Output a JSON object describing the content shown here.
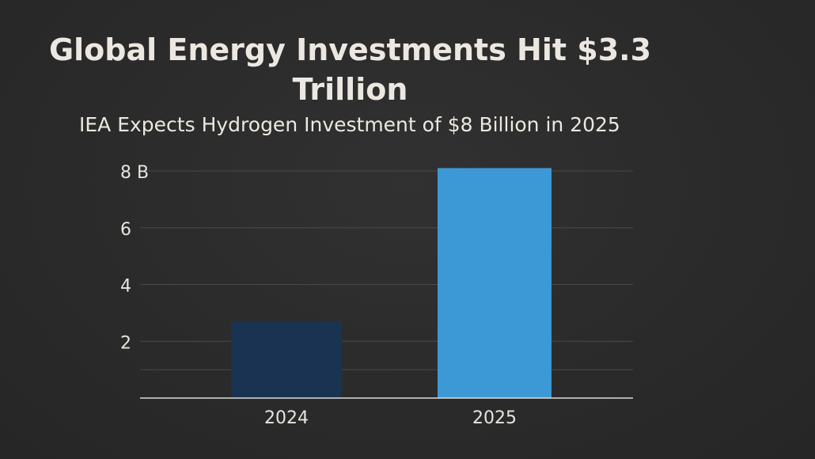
{
  "chart_data": {
    "type": "bar",
    "title": "Global Energy Investments Hit $3.3 Trillion",
    "subtitle": "IEA Expects Hydrogen Investment of $8 Billion in 2025",
    "categories": [
      "2024",
      "2025"
    ],
    "values": [
      2.7,
      8.1
    ],
    "bar_colors": [
      "#1b3352",
      "#3d99d6"
    ],
    "ylim": [
      0,
      8
    ],
    "yticks": [
      {
        "value": 2,
        "label": "2"
      },
      {
        "value": 4,
        "label": "4"
      },
      {
        "value": 6,
        "label": "6"
      },
      {
        "value": 8,
        "label": "8 B"
      }
    ],
    "grid": true,
    "xlabel": "",
    "ylabel": ""
  }
}
